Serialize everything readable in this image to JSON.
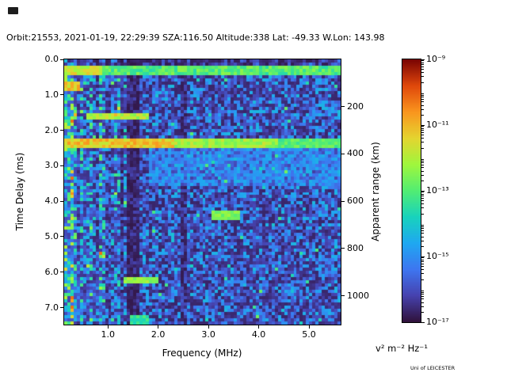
{
  "chart_data": {
    "type": "heatmap",
    "title": "Orbit:21553, 2021-01-19, 22:29:39 SZA:116.50 Altitude:338 Lat: -49.33 W.Lon: 143.98",
    "xlabel": "Frequency (MHz)",
    "ylabel": "Time Delay (ms)",
    "y2label": "Apparent range (km)",
    "colorbar_label": "v² m⁻² Hz⁻¹",
    "credit": "Uni of LEICESTER",
    "x_range_mhz": [
      0.13,
      5.63
    ],
    "x_tick_values": [
      1.0,
      2.0,
      3.0,
      4.0,
      5.0
    ],
    "x_tick_labels": [
      "1.0",
      "2.0",
      "3.0",
      "4.0",
      "5.0"
    ],
    "y_range_ms": [
      0.0,
      7.48
    ],
    "y_tick_values": [
      0.0,
      1.0,
      2.0,
      3.0,
      4.0,
      5.0,
      6.0,
      7.0
    ],
    "y_tick_labels": [
      "0.0",
      "1.0",
      "2.0",
      "3.0",
      "4.0",
      "5.0",
      "6.0",
      "7.0"
    ],
    "y2_tick_values_km": [
      200,
      400,
      600,
      800,
      1000
    ],
    "y2_tick_labels": [
      "200",
      "400",
      "600",
      "800",
      "1000"
    ],
    "km_per_ms": 150,
    "colorbar": {
      "scale": "log",
      "exponent_range": [
        -17,
        -9
      ],
      "tick_exponents": [
        -9,
        -11,
        -13,
        -15,
        -17
      ],
      "tick_labels": [
        "10⁻⁹",
        "10⁻¹¹",
        "10⁻¹³",
        "10⁻¹⁵",
        "10⁻¹⁷"
      ]
    },
    "colormap_stops": [
      "#30123b",
      "#4642ae",
      "#3e76f0",
      "#1fa8f1",
      "#18d3bd",
      "#52ed73",
      "#a0f73d",
      "#e4d530",
      "#fa961e",
      "#e0480b",
      "#7a0403"
    ],
    "grid": {
      "cols": 88,
      "rows": 84,
      "seed": 42
    },
    "quiet_top": {
      "t_max_ms": 0.18,
      "factor": 0.5
    },
    "column_striping": {
      "f_max_mhz": 1.35,
      "min_factor": 0.45,
      "spread": 1.15
    },
    "noise_regions": [
      {
        "f": [
          0.13,
          0.32
        ],
        "base": 0.1,
        "amp": 0.45,
        "p": 0.25,
        "bamp": 0.3
      },
      {
        "f": [
          0.32,
          0.55
        ],
        "base": 0.07,
        "amp": 0.4,
        "p": 0.18,
        "bamp": 0.28
      },
      {
        "f": [
          0.55,
          1.35
        ],
        "base": 0.05,
        "amp": 0.34,
        "p": 0.1,
        "bamp": 0.26
      },
      {
        "f": [
          1.35,
          1.62
        ],
        "base": 0.03,
        "amp": 0.18,
        "p": 0.02,
        "bamp": 0.15
      },
      {
        "f": [
          1.62,
          5.63
        ],
        "base": 0.04,
        "amp": 0.3,
        "p": 0.06,
        "bamp": 0.24
      }
    ],
    "dark_columns": [
      {
        "f": [
          1.35,
          1.62
        ],
        "factor": 0.5
      },
      {
        "f": [
          2.42,
          2.58
        ],
        "factor": 0.5
      }
    ],
    "echo_features": [
      {
        "t": [
          0.2,
          0.42
        ],
        "f": [
          0.13,
          5.63
        ],
        "v": 0.5,
        "j": 0.16
      },
      {
        "t": [
          0.2,
          0.42
        ],
        "f": [
          0.13,
          0.85
        ],
        "v": 0.66,
        "j": 0.14
      },
      {
        "t": [
          0.6,
          0.85
        ],
        "f": [
          0.13,
          0.42
        ],
        "v": 0.72,
        "j": 0.16
      },
      {
        "t": [
          1.5,
          1.72
        ],
        "f": [
          0.55,
          1.8
        ],
        "v": 0.62,
        "j": 0.14
      },
      {
        "t": [
          2.22,
          2.48
        ],
        "f": [
          0.13,
          2.3
        ],
        "v": 0.72,
        "j": 0.16
      },
      {
        "t": [
          2.22,
          2.48
        ],
        "f": [
          2.3,
          4.4
        ],
        "v": 0.6,
        "j": 0.14
      },
      {
        "t": [
          2.22,
          2.48
        ],
        "f": [
          4.4,
          5.63
        ],
        "v": 0.5,
        "j": 0.12
      },
      {
        "t": [
          2.5,
          3.6
        ],
        "f": [
          1.8,
          5.63
        ],
        "v": 0.2,
        "j": 0.22
      },
      {
        "t": [
          4.28,
          4.5
        ],
        "f": [
          3.05,
          3.65
        ],
        "v": 0.55,
        "j": 0.1
      },
      {
        "t": [
          6.1,
          6.32
        ],
        "f": [
          1.3,
          2.0
        ],
        "v": 0.58,
        "j": 0.12
      },
      {
        "t": [
          7.2,
          7.45
        ],
        "f": [
          1.45,
          1.8
        ],
        "v": 0.45,
        "j": 0.1
      }
    ]
  }
}
